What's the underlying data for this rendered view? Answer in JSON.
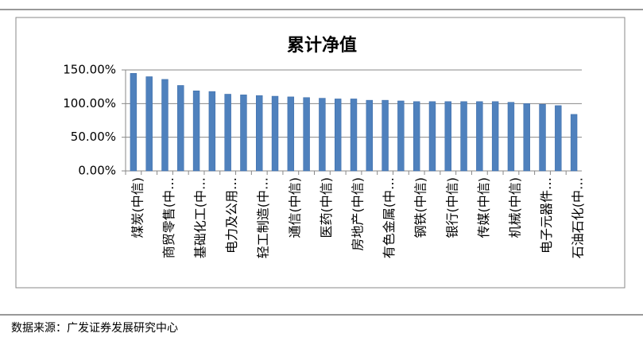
{
  "chart_data": {
    "type": "bar",
    "title": "累计净值",
    "categories": [
      "煤炭(中信)",
      null,
      "商贸零售(中…",
      null,
      "基础化工(中…",
      null,
      "电力及公用…",
      null,
      "轻工制造(中…",
      null,
      "通信(中信)",
      null,
      "医药(中信)",
      null,
      "房地产(中信)",
      null,
      "有色金属(中…",
      null,
      "钢铁(中信)",
      null,
      "银行(中信)",
      null,
      "传媒(中信)",
      null,
      "机械(中信)",
      null,
      "电子元器件…",
      null,
      "石油石化(中…"
    ],
    "values": [
      145,
      140,
      136,
      127,
      119,
      118,
      114,
      113,
      112,
      111,
      110,
      109,
      108,
      107,
      107,
      105,
      105,
      104,
      103,
      103,
      103,
      103,
      103,
      103,
      102,
      100,
      99,
      97,
      84
    ],
    "color": "#4f81bd",
    "ylim": [
      0,
      150
    ],
    "yticks": [
      {
        "value": 0,
        "label": "0.00%"
      },
      {
        "value": 50,
        "label": "50.00%"
      },
      {
        "value": 100,
        "label": "100.00%"
      },
      {
        "value": 150,
        "label": "150.00%"
      }
    ],
    "grid": true
  },
  "source": "数据来源：广发证券发展研究中心"
}
